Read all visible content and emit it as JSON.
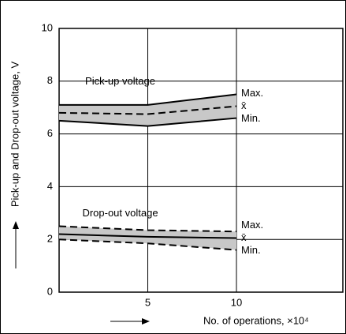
{
  "chart_data": {
    "type": "line",
    "xlabel": "No. of operations, ×10⁴",
    "ylabel": "Pick-up and Drop-out voltage, V",
    "x": [
      0,
      5,
      10
    ],
    "xlim": [
      0,
      16
    ],
    "xticks": [
      5,
      10
    ],
    "ylim": [
      0,
      10
    ],
    "yticks": [
      0,
      2,
      4,
      6,
      8,
      10
    ],
    "grid": true,
    "groups": [
      {
        "label": "Pick-up voltage",
        "band_color": "#c8c8c8",
        "series": [
          {
            "name": "Max.",
            "color": "#000",
            "dashed": false,
            "values": [
              7.1,
              7.1,
              7.5
            ]
          },
          {
            "name": "x̄",
            "color": "#000",
            "dashed": true,
            "values": [
              6.8,
              6.75,
              7.05
            ]
          },
          {
            "name": "Min.",
            "color": "#000",
            "dashed": false,
            "values": [
              6.5,
              6.3,
              6.6
            ]
          }
        ]
      },
      {
        "label": "Drop-out voltage",
        "band_color": "#c8c8c8",
        "series": [
          {
            "name": "Max.",
            "color": "#000",
            "dashed": true,
            "values": [
              2.5,
              2.35,
              2.3
            ]
          },
          {
            "name": "x̄",
            "color": "#000",
            "dashed": false,
            "values": [
              2.2,
              2.1,
              2.05
            ]
          },
          {
            "name": "Min.",
            "color": "#000",
            "dashed": true,
            "values": [
              2.0,
              1.85,
              1.6
            ]
          }
        ]
      }
    ]
  }
}
